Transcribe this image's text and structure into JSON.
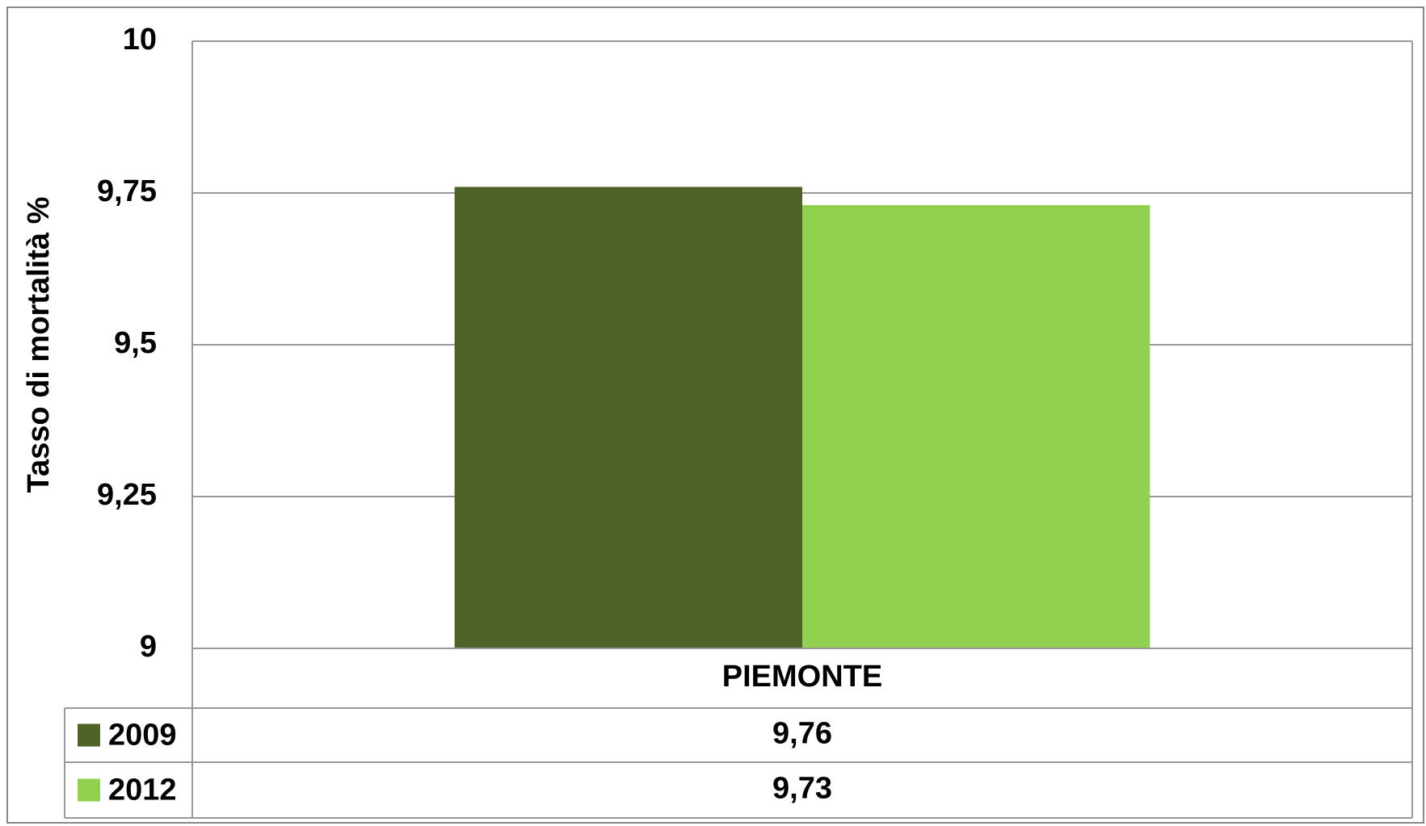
{
  "chart_data": {
    "type": "bar",
    "y_axis_label": "Tasso di mortalità %",
    "categories": [
      "PIEMONTE"
    ],
    "series": [
      {
        "name": "2009",
        "color": "#4f6228",
        "values": [
          9.76
        ],
        "value_labels": [
          "9,76"
        ]
      },
      {
        "name": "2012",
        "color": "#92d050",
        "values": [
          9.73
        ],
        "value_labels": [
          "9,73"
        ]
      }
    ],
    "ylim": [
      9,
      10
    ],
    "yticks": [
      9,
      {
        "value": 9.25,
        "label": "9,25"
      },
      {
        "value": 9.5,
        "label": "9,5"
      },
      {
        "value": 9.75,
        "label": "9,75"
      },
      10
    ],
    "grid": true,
    "data_table": true
  }
}
